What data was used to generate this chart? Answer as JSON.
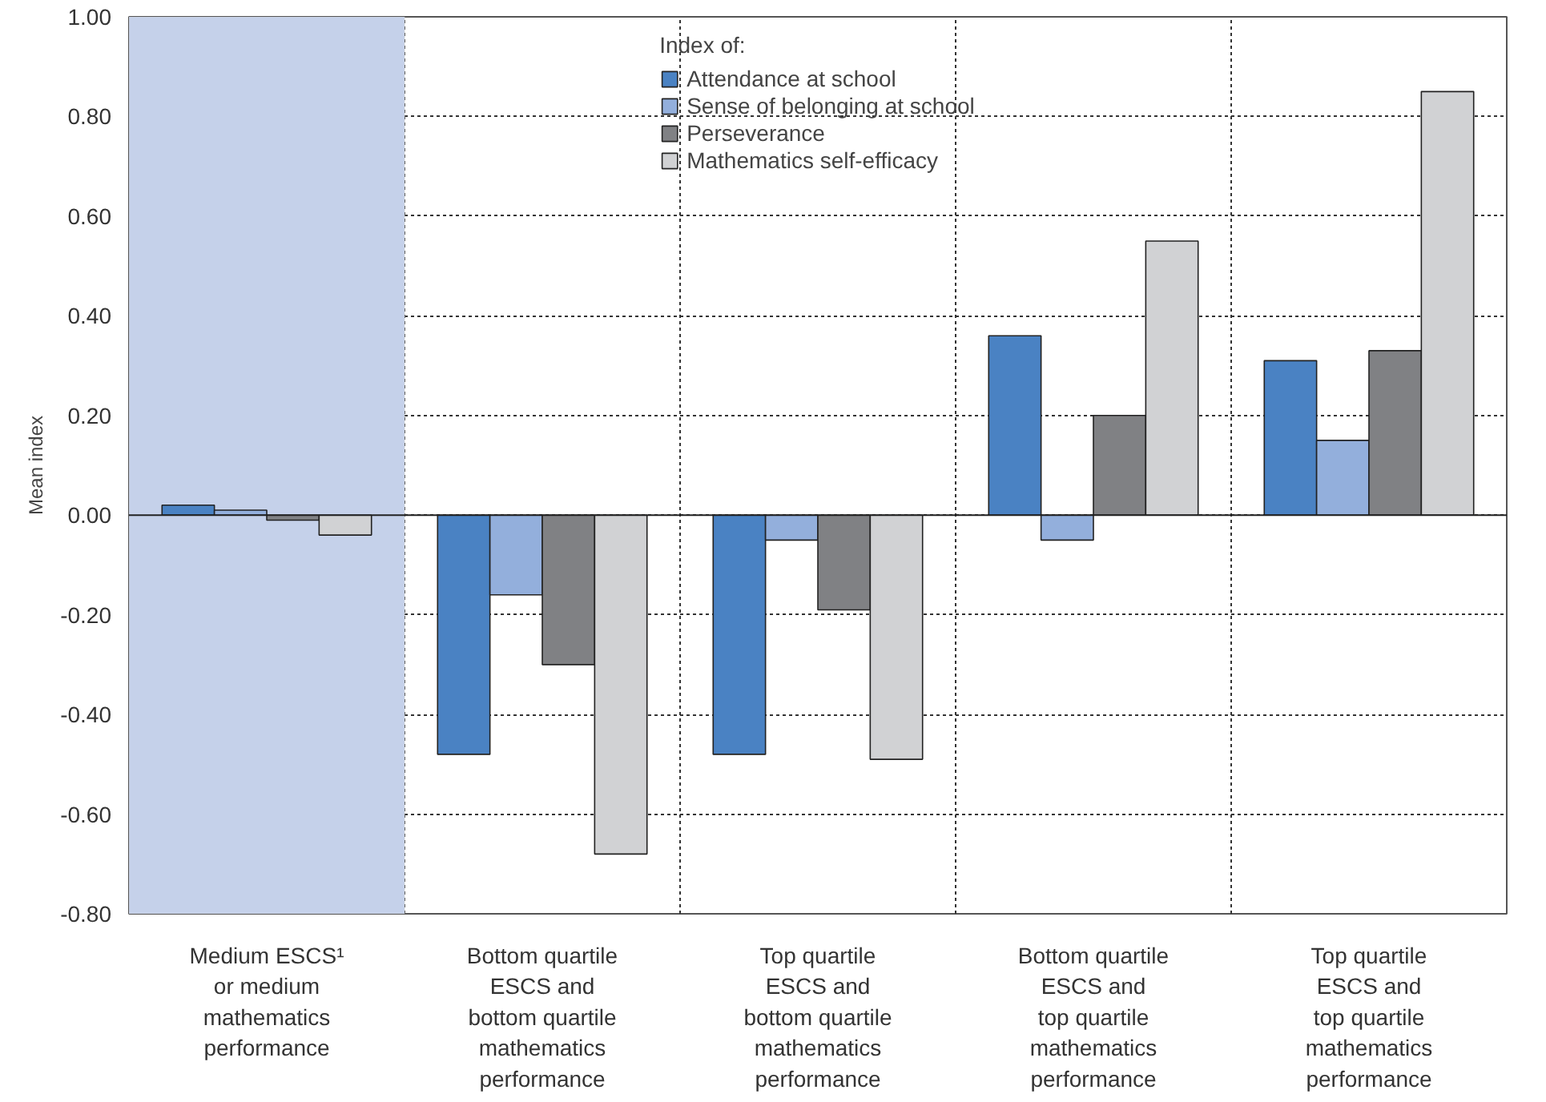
{
  "chart_data": {
    "type": "bar",
    "ylabel": "Mean index",
    "legend_title": "Index of:",
    "legend": "top",
    "categories": [
      "Medium ESCS¹\nor medium\nmathematics\nperformance",
      "Bottom quartile\nESCS and\nbottom quartile\nmathematics\nperformance",
      "Top quartile\nESCS and\nbottom quartile\nmathematics\nperformance",
      "Bottom quartile\nESCS and\ntop quartile\nmathematics\nperformance",
      "Top quartile\nESCS and\ntop quartile\nmathematics\nperformance"
    ],
    "series": [
      {
        "name": "Attendance at school",
        "color": "#4a82c3",
        "values": [
          0.02,
          -0.48,
          -0.48,
          0.36,
          0.31
        ]
      },
      {
        "name": "Sense of belonging at school",
        "color": "#93afdc",
        "values": [
          0.01,
          -0.16,
          -0.05,
          -0.05,
          0.15
        ]
      },
      {
        "name": "Perseverance",
        "color": "#808184",
        "values": [
          -0.01,
          -0.3,
          -0.19,
          0.2,
          0.33
        ]
      },
      {
        "name": "Mathematics self-efficacy",
        "color": "#d1d2d4",
        "values": [
          -0.04,
          -0.68,
          -0.49,
          0.55,
          0.85
        ]
      }
    ],
    "ylim": [
      -0.8,
      1.0
    ],
    "yticks": [
      {
        "value": -0.8,
        "label": "-0.80"
      },
      {
        "value": -0.6,
        "label": "-0.60"
      },
      {
        "value": -0.4,
        "label": "-0.40"
      },
      {
        "value": -0.2,
        "label": "-0.20"
      },
      {
        "value": 0,
        "label": "0.00"
      },
      {
        "value": 0.2,
        "label": "0.20"
      },
      {
        "value": 0.4,
        "label": "0.40"
      },
      {
        "value": 0.6,
        "label": "0.60"
      },
      {
        "value": 0.8,
        "label": "0.80"
      },
      {
        "value": 1.0,
        "label": "1.00"
      }
    ],
    "grid": true,
    "bands": [
      {
        "axis": "x",
        "from": "Medium ESCS¹\nor medium\nmathematics\nperformance",
        "to": "Medium ESCS¹\nor medium\nmathematics\nperformance",
        "color": "#c5d1ea"
      }
    ]
  }
}
